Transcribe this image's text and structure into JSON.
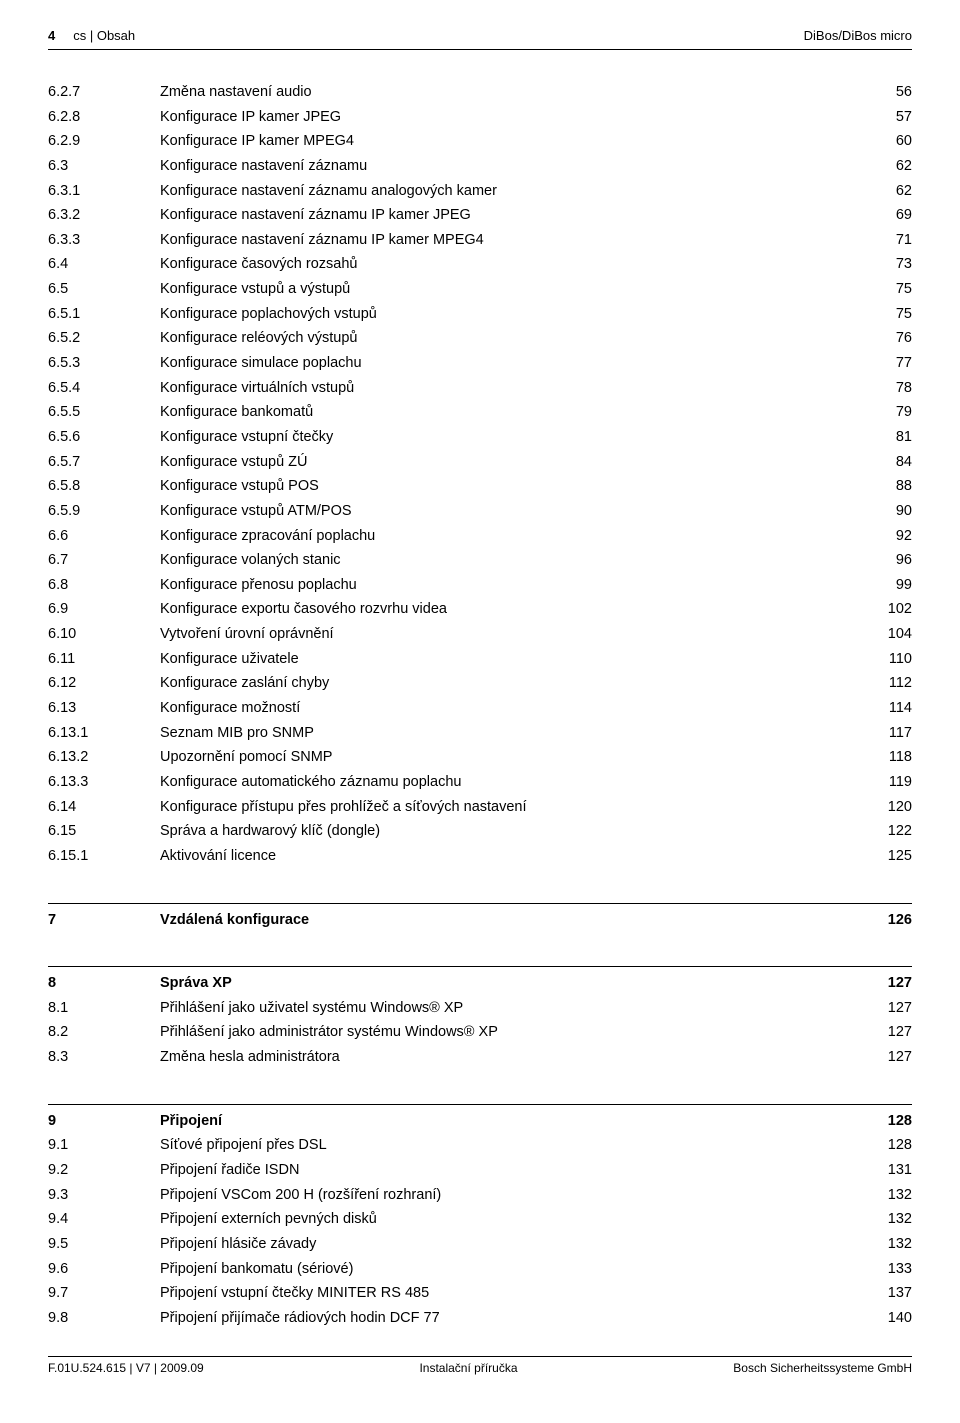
{
  "header": {
    "page_number": "4",
    "breadcrumb": "cs | Obsah",
    "product": "DiBos/DiBos micro"
  },
  "sections": [
    {
      "heading": null,
      "rows": [
        {
          "num": "6.2.7",
          "title": "Změna nastavení audio",
          "page": "56"
        },
        {
          "num": "6.2.8",
          "title": "Konfigurace IP kamer JPEG",
          "page": "57"
        },
        {
          "num": "6.2.9",
          "title": "Konfigurace IP kamer MPEG4",
          "page": "60"
        },
        {
          "num": "6.3",
          "title": "Konfigurace nastavení záznamu",
          "page": "62"
        },
        {
          "num": "6.3.1",
          "title": "Konfigurace nastavení záznamu analogových kamer",
          "page": "62"
        },
        {
          "num": "6.3.2",
          "title": "Konfigurace nastavení záznamu IP kamer JPEG",
          "page": "69"
        },
        {
          "num": "6.3.3",
          "title": "Konfigurace nastavení záznamu IP kamer MPEG4",
          "page": "71"
        },
        {
          "num": "6.4",
          "title": "Konfigurace časových rozsahů",
          "page": "73"
        },
        {
          "num": "6.5",
          "title": "Konfigurace vstupů a výstupů",
          "page": "75"
        },
        {
          "num": "6.5.1",
          "title": "Konfigurace poplachových vstupů",
          "page": "75"
        },
        {
          "num": "6.5.2",
          "title": "Konfigurace reléových výstupů",
          "page": "76"
        },
        {
          "num": "6.5.3",
          "title": "Konfigurace simulace poplachu",
          "page": "77"
        },
        {
          "num": "6.5.4",
          "title": "Konfigurace virtuálních vstupů",
          "page": "78"
        },
        {
          "num": "6.5.5",
          "title": "Konfigurace bankomatů",
          "page": "79"
        },
        {
          "num": "6.5.6",
          "title": "Konfigurace vstupní čtečky",
          "page": "81"
        },
        {
          "num": "6.5.7",
          "title": "Konfigurace vstupů ZÚ",
          "page": "84"
        },
        {
          "num": "6.5.8",
          "title": "Konfigurace vstupů POS",
          "page": "88"
        },
        {
          "num": "6.5.9",
          "title": "Konfigurace vstupů ATM/POS",
          "page": "90"
        },
        {
          "num": "6.6",
          "title": "Konfigurace zpracování poplachu",
          "page": "92"
        },
        {
          "num": "6.7",
          "title": "Konfigurace volaných stanic",
          "page": "96"
        },
        {
          "num": "6.8",
          "title": "Konfigurace přenosu poplachu",
          "page": "99"
        },
        {
          "num": "6.9",
          "title": "Konfigurace exportu časového rozvrhu videa",
          "page": "102"
        },
        {
          "num": "6.10",
          "title": "Vytvoření úrovní oprávnění",
          "page": "104"
        },
        {
          "num": "6.11",
          "title": "Konfigurace uživatele",
          "page": "110"
        },
        {
          "num": "6.12",
          "title": "Konfigurace zaslání chyby",
          "page": "112"
        },
        {
          "num": "6.13",
          "title": "Konfigurace možností",
          "page": "114"
        },
        {
          "num": "6.13.1",
          "title": "Seznam MIB pro SNMP",
          "page": "117"
        },
        {
          "num": "6.13.2",
          "title": "Upozornění pomocí SNMP",
          "page": "118"
        },
        {
          "num": "6.13.3",
          "title": "Konfigurace automatického záznamu poplachu",
          "page": "119"
        },
        {
          "num": "6.14",
          "title": "Konfigurace přístupu přes prohlížeč a síťových nastavení",
          "page": "120"
        },
        {
          "num": "6.15",
          "title": "Správa a hardwarový klíč (dongle)",
          "page": "122"
        },
        {
          "num": "6.15.1",
          "title": "Aktivování licence",
          "page": "125"
        }
      ]
    },
    {
      "heading": {
        "num": "7",
        "title": "Vzdálená konfigurace",
        "page": "126"
      },
      "rows": []
    },
    {
      "heading": {
        "num": "8",
        "title": "Správa XP",
        "page": "127"
      },
      "rows": [
        {
          "num": "8.1",
          "title": "Přihlášení jako uživatel systému Windows® XP",
          "page": "127"
        },
        {
          "num": "8.2",
          "title": "Přihlášení jako administrátor systému Windows® XP",
          "page": "127"
        },
        {
          "num": "8.3",
          "title": "Změna hesla administrátora",
          "page": "127"
        }
      ]
    },
    {
      "heading": {
        "num": "9",
        "title": "Připojení",
        "page": "128"
      },
      "rows": [
        {
          "num": "9.1",
          "title": "Síťové připojení přes DSL",
          "page": "128"
        },
        {
          "num": "9.2",
          "title": "Připojení řadiče ISDN",
          "page": "131"
        },
        {
          "num": "9.3",
          "title": "Připojení VSCom 200 H (rozšíření rozhraní)",
          "page": "132"
        },
        {
          "num": "9.4",
          "title": "Připojení externích pevných disků",
          "page": "132"
        },
        {
          "num": "9.5",
          "title": "Připojení hlásiče závady",
          "page": "132"
        },
        {
          "num": "9.6",
          "title": "Připojení bankomatu (sériové)",
          "page": "133"
        },
        {
          "num": "9.7",
          "title": "Připojení vstupní čtečky MINITER RS 485",
          "page": "137"
        },
        {
          "num": "9.8",
          "title": "Připojení přijímače rádiových hodin DCF 77",
          "page": "140"
        }
      ]
    }
  ],
  "footer": {
    "left": "F.01U.524.615 | V7 | 2009.09",
    "center": "Instalační příručka",
    "right": "Bosch Sicherheitssysteme GmbH"
  }
}
